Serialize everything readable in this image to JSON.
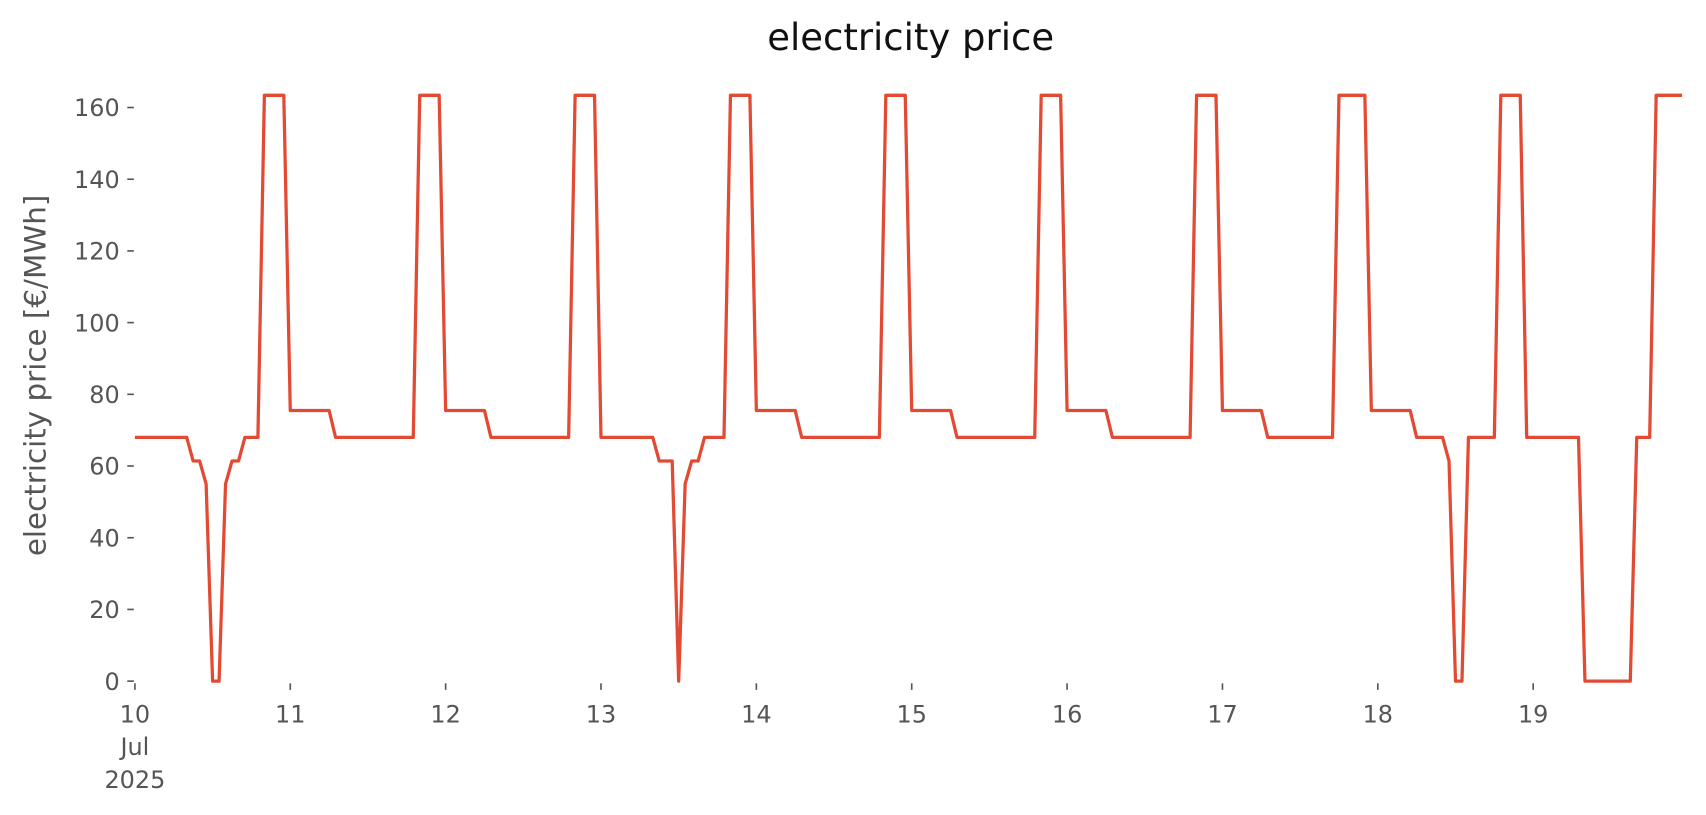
{
  "chart_data": {
    "type": "line",
    "title": "electricity price",
    "y_label": "electricity price [€/MWh]",
    "x": [
      "2025-07-10T00:00",
      "2025-07-10T01:00",
      "2025-07-10T02:00",
      "2025-07-10T03:00",
      "2025-07-10T04:00",
      "2025-07-10T05:00",
      "2025-07-10T06:00",
      "2025-07-10T07:00",
      "2025-07-10T08:00",
      "2025-07-10T09:00",
      "2025-07-10T10:00",
      "2025-07-10T11:00",
      "2025-07-10T12:00",
      "2025-07-10T13:00",
      "2025-07-10T14:00",
      "2025-07-10T15:00",
      "2025-07-10T16:00",
      "2025-07-10T17:00",
      "2025-07-10T18:00",
      "2025-07-10T19:00",
      "2025-07-10T20:00",
      "2025-07-10T21:00",
      "2025-07-10T22:00",
      "2025-07-10T23:00",
      "2025-07-11T00:00",
      "2025-07-11T01:00",
      "2025-07-11T02:00",
      "2025-07-11T03:00",
      "2025-07-11T04:00",
      "2025-07-11T05:00",
      "2025-07-11T06:00",
      "2025-07-11T07:00",
      "2025-07-11T08:00",
      "2025-07-11T09:00",
      "2025-07-11T10:00",
      "2025-07-11T11:00",
      "2025-07-11T12:00",
      "2025-07-11T13:00",
      "2025-07-11T14:00",
      "2025-07-11T15:00",
      "2025-07-11T16:00",
      "2025-07-11T17:00",
      "2025-07-11T18:00",
      "2025-07-11T19:00",
      "2025-07-11T20:00",
      "2025-07-11T21:00",
      "2025-07-11T22:00",
      "2025-07-11T23:00",
      "2025-07-12T00:00",
      "2025-07-12T01:00",
      "2025-07-12T02:00",
      "2025-07-12T03:00",
      "2025-07-12T04:00",
      "2025-07-12T05:00",
      "2025-07-12T06:00",
      "2025-07-12T07:00",
      "2025-07-12T08:00",
      "2025-07-12T09:00",
      "2025-07-12T10:00",
      "2025-07-12T11:00",
      "2025-07-12T12:00",
      "2025-07-12T13:00",
      "2025-07-12T14:00",
      "2025-07-12T15:00",
      "2025-07-12T16:00",
      "2025-07-12T17:00",
      "2025-07-12T18:00",
      "2025-07-12T19:00",
      "2025-07-12T20:00",
      "2025-07-12T21:00",
      "2025-07-12T22:00",
      "2025-07-12T23:00",
      "2025-07-13T00:00",
      "2025-07-13T01:00",
      "2025-07-13T02:00",
      "2025-07-13T03:00",
      "2025-07-13T04:00",
      "2025-07-13T05:00",
      "2025-07-13T06:00",
      "2025-07-13T07:00",
      "2025-07-13T08:00",
      "2025-07-13T09:00",
      "2025-07-13T10:00",
      "2025-07-13T11:00",
      "2025-07-13T12:00",
      "2025-07-13T13:00",
      "2025-07-13T14:00",
      "2025-07-13T15:00",
      "2025-07-13T16:00",
      "2025-07-13T17:00",
      "2025-07-13T18:00",
      "2025-07-13T19:00",
      "2025-07-13T20:00",
      "2025-07-13T21:00",
      "2025-07-13T22:00",
      "2025-07-13T23:00",
      "2025-07-14T00:00",
      "2025-07-14T01:00",
      "2025-07-14T02:00",
      "2025-07-14T03:00",
      "2025-07-14T04:00",
      "2025-07-14T05:00",
      "2025-07-14T06:00",
      "2025-07-14T07:00",
      "2025-07-14T08:00",
      "2025-07-14T09:00",
      "2025-07-14T10:00",
      "2025-07-14T11:00",
      "2025-07-14T12:00",
      "2025-07-14T13:00",
      "2025-07-14T14:00",
      "2025-07-14T15:00",
      "2025-07-14T16:00",
      "2025-07-14T17:00",
      "2025-07-14T18:00",
      "2025-07-14T19:00",
      "2025-07-14T20:00",
      "2025-07-14T21:00",
      "2025-07-14T22:00",
      "2025-07-14T23:00",
      "2025-07-15T00:00",
      "2025-07-15T01:00",
      "2025-07-15T02:00",
      "2025-07-15T03:00",
      "2025-07-15T04:00",
      "2025-07-15T05:00",
      "2025-07-15T06:00",
      "2025-07-15T07:00",
      "2025-07-15T08:00",
      "2025-07-15T09:00",
      "2025-07-15T10:00",
      "2025-07-15T11:00",
      "2025-07-15T12:00",
      "2025-07-15T13:00",
      "2025-07-15T14:00",
      "2025-07-15T15:00",
      "2025-07-15T16:00",
      "2025-07-15T17:00",
      "2025-07-15T18:00",
      "2025-07-15T19:00",
      "2025-07-15T20:00",
      "2025-07-15T21:00",
      "2025-07-15T22:00",
      "2025-07-15T23:00",
      "2025-07-16T00:00",
      "2025-07-16T01:00",
      "2025-07-16T02:00",
      "2025-07-16T03:00",
      "2025-07-16T04:00",
      "2025-07-16T05:00",
      "2025-07-16T06:00",
      "2025-07-16T07:00",
      "2025-07-16T08:00",
      "2025-07-16T09:00",
      "2025-07-16T10:00",
      "2025-07-16T11:00",
      "2025-07-16T12:00",
      "2025-07-16T13:00",
      "2025-07-16T14:00",
      "2025-07-16T15:00",
      "2025-07-16T16:00",
      "2025-07-16T17:00",
      "2025-07-16T18:00",
      "2025-07-16T19:00",
      "2025-07-16T20:00",
      "2025-07-16T21:00",
      "2025-07-16T22:00",
      "2025-07-16T23:00",
      "2025-07-17T00:00",
      "2025-07-17T01:00",
      "2025-07-17T02:00",
      "2025-07-17T03:00",
      "2025-07-17T04:00",
      "2025-07-17T05:00",
      "2025-07-17T06:00",
      "2025-07-17T07:00",
      "2025-07-17T08:00",
      "2025-07-17T09:00",
      "2025-07-17T10:00",
      "2025-07-17T11:00",
      "2025-07-17T12:00",
      "2025-07-17T13:00",
      "2025-07-17T14:00",
      "2025-07-17T15:00",
      "2025-07-17T16:00",
      "2025-07-17T17:00",
      "2025-07-17T18:00",
      "2025-07-17T19:00",
      "2025-07-17T20:00",
      "2025-07-17T21:00",
      "2025-07-17T22:00",
      "2025-07-17T23:00",
      "2025-07-18T00:00",
      "2025-07-18T01:00",
      "2025-07-18T02:00",
      "2025-07-18T03:00",
      "2025-07-18T04:00",
      "2025-07-18T05:00",
      "2025-07-18T06:00",
      "2025-07-18T07:00",
      "2025-07-18T08:00",
      "2025-07-18T09:00",
      "2025-07-18T10:00",
      "2025-07-18T11:00",
      "2025-07-18T12:00",
      "2025-07-18T13:00",
      "2025-07-18T14:00",
      "2025-07-18T15:00",
      "2025-07-18T16:00",
      "2025-07-18T17:00",
      "2025-07-18T18:00",
      "2025-07-18T19:00",
      "2025-07-18T20:00",
      "2025-07-18T21:00",
      "2025-07-18T22:00",
      "2025-07-18T23:00",
      "2025-07-19T00:00",
      "2025-07-19T01:00",
      "2025-07-19T02:00",
      "2025-07-19T03:00",
      "2025-07-19T04:00",
      "2025-07-19T05:00",
      "2025-07-19T06:00",
      "2025-07-19T07:00",
      "2025-07-19T08:00",
      "2025-07-19T09:00",
      "2025-07-19T10:00",
      "2025-07-19T11:00",
      "2025-07-19T12:00",
      "2025-07-19T13:00",
      "2025-07-19T14:00",
      "2025-07-19T15:00",
      "2025-07-19T16:00",
      "2025-07-19T17:00",
      "2025-07-19T18:00",
      "2025-07-19T19:00",
      "2025-07-19T20:00",
      "2025-07-19T21:00",
      "2025-07-19T22:00",
      "2025-07-19T23:00"
    ],
    "series": [
      {
        "color": "#e24a33",
        "values": [
          68,
          68,
          68,
          68,
          68,
          68,
          68,
          68,
          68,
          61.4,
          61.4,
          55,
          0,
          0,
          55,
          61.4,
          61.4,
          68,
          68,
          68,
          163.4,
          163.4,
          163.4,
          163.4,
          75.5,
          75.5,
          75.5,
          75.5,
          75.5,
          75.5,
          75.5,
          68,
          68,
          68,
          68,
          68,
          68,
          68,
          68,
          68,
          68,
          68,
          68,
          68,
          163.4,
          163.4,
          163.4,
          163.4,
          75.5,
          75.5,
          75.5,
          75.5,
          75.5,
          75.5,
          75.5,
          68,
          68,
          68,
          68,
          68,
          68,
          68,
          68,
          68,
          68,
          68,
          68,
          68,
          163.4,
          163.4,
          163.4,
          163.4,
          68,
          68,
          68,
          68,
          68,
          68,
          68,
          68,
          68,
          61.4,
          61.4,
          61.4,
          0,
          55,
          61.4,
          61.4,
          68,
          68,
          68,
          68,
          163.4,
          163.4,
          163.4,
          163.4,
          75.5,
          75.5,
          75.5,
          75.5,
          75.5,
          75.5,
          75.5,
          68,
          68,
          68,
          68,
          68,
          68,
          68,
          68,
          68,
          68,
          68,
          68,
          68,
          163.4,
          163.4,
          163.4,
          163.4,
          75.5,
          75.5,
          75.5,
          75.5,
          75.5,
          75.5,
          75.5,
          68,
          68,
          68,
          68,
          68,
          68,
          68,
          68,
          68,
          68,
          68,
          68,
          68,
          163.4,
          163.4,
          163.4,
          163.4,
          75.5,
          75.5,
          75.5,
          75.5,
          75.5,
          75.5,
          75.5,
          68,
          68,
          68,
          68,
          68,
          68,
          68,
          68,
          68,
          68,
          68,
          68,
          68,
          163.4,
          163.4,
          163.4,
          163.4,
          75.5,
          75.5,
          75.5,
          75.5,
          75.5,
          75.5,
          75.5,
          68,
          68,
          68,
          68,
          68,
          68,
          68,
          68,
          68,
          68,
          68,
          163.4,
          163.4,
          163.4,
          163.4,
          163.4,
          75.5,
          75.5,
          75.5,
          75.5,
          75.5,
          75.5,
          75.5,
          68,
          68,
          68,
          68,
          68,
          61.4,
          0,
          0,
          68,
          68,
          68,
          68,
          68,
          163.4,
          163.4,
          163.4,
          163.4,
          68,
          68,
          68,
          68,
          68,
          68,
          68,
          68,
          68,
          0,
          0,
          0,
          0,
          0,
          0,
          0,
          0,
          68,
          68,
          68,
          163.4,
          163.4,
          163.4,
          163.4,
          163.4
        ]
      }
    ],
    "xlim": [
      "2025-07-10T00:00",
      "2025-07-19T23:00"
    ],
    "xticks": [
      {
        "value": "2025-07-10T00:00",
        "label": "10\nJul\n2025"
      },
      {
        "value": "2025-07-11T00:00",
        "label": "11"
      },
      {
        "value": "2025-07-12T00:00",
        "label": "12"
      },
      {
        "value": "2025-07-13T00:00",
        "label": "13"
      },
      {
        "value": "2025-07-14T00:00",
        "label": "14"
      },
      {
        "value": "2025-07-15T00:00",
        "label": "15"
      },
      {
        "value": "2025-07-16T00:00",
        "label": "16"
      },
      {
        "value": "2025-07-17T00:00",
        "label": "17"
      },
      {
        "value": "2025-07-18T00:00",
        "label": "18"
      },
      {
        "value": "2025-07-19T00:00",
        "label": "19"
      }
    ],
    "ylim": [
      0,
      166
    ],
    "yticks": [
      0,
      20,
      40,
      60,
      80,
      100,
      120,
      140,
      160
    ],
    "grid": false
  }
}
